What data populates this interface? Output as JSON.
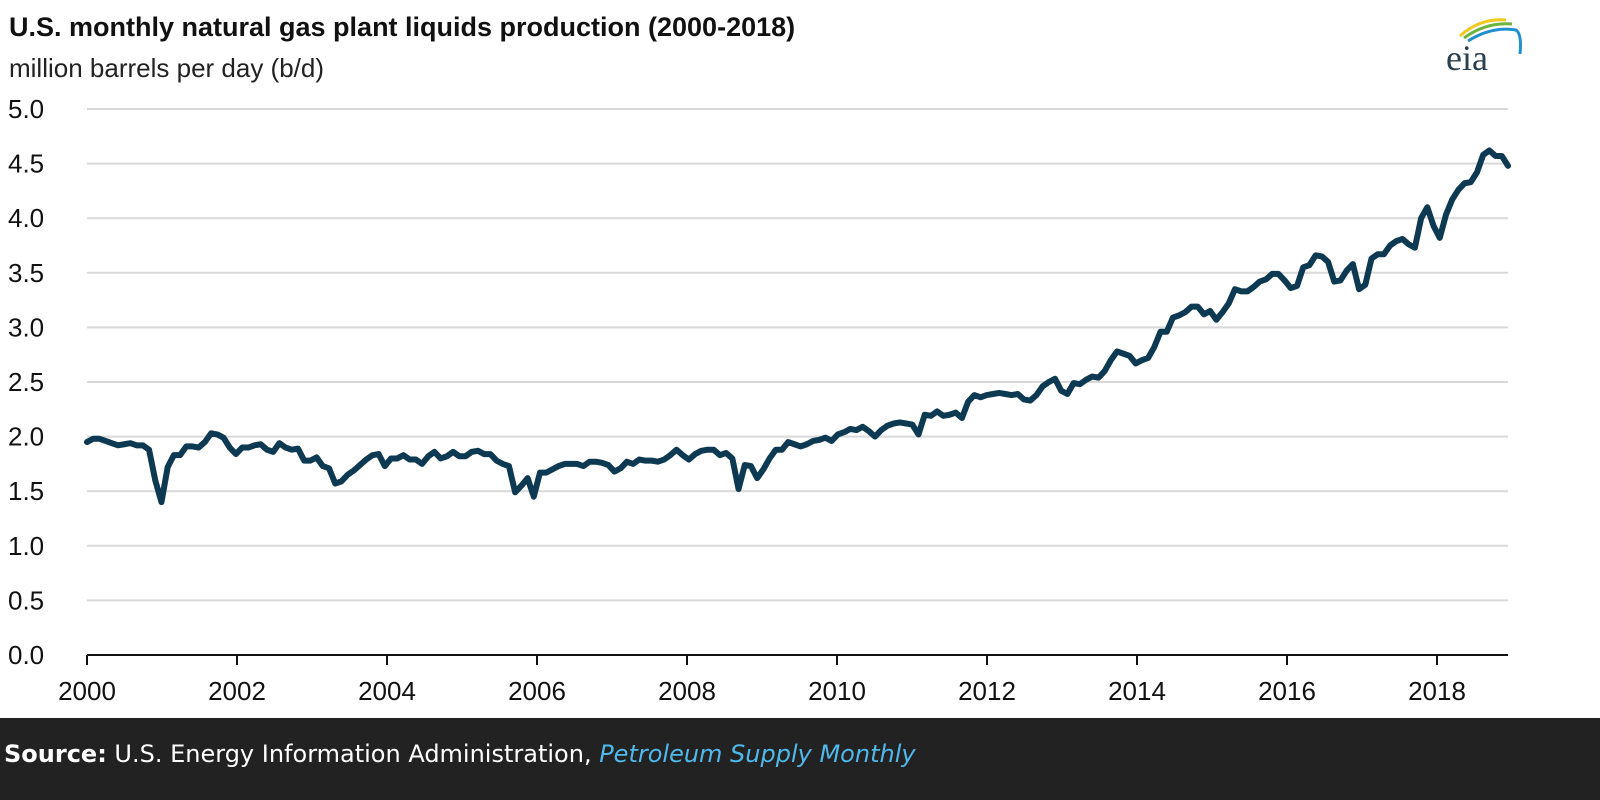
{
  "chart_data": {
    "type": "line",
    "title": "U.S. monthly natural gas plant liquids production (2000-2018)",
    "ylabel": "million barrels per day (b/d)",
    "xlabel": "",
    "ylim": [
      0,
      5.0
    ],
    "xlim": [
      "2000-01",
      "2018-12"
    ],
    "yticks": [
      "0.0",
      "0.5",
      "1.0",
      "1.5",
      "2.0",
      "2.5",
      "3.0",
      "3.5",
      "4.0",
      "4.5",
      "5.0"
    ],
    "xticks": [
      "2000",
      "2002",
      "2004",
      "2006",
      "2008",
      "2010",
      "2012",
      "2014",
      "2016",
      "2018"
    ],
    "grid": "horizontal",
    "line_color": "#0d3a52",
    "x_start": "2000-01",
    "frequency": "monthly",
    "values": [
      1.95,
      1.98,
      1.98,
      1.96,
      1.94,
      1.92,
      1.93,
      1.94,
      1.92,
      1.92,
      1.88,
      1.6,
      1.4,
      1.72,
      1.83,
      1.83,
      1.91,
      1.91,
      1.9,
      1.95,
      2.03,
      2.02,
      1.99,
      1.9,
      1.84,
      1.9,
      1.9,
      1.92,
      1.93,
      1.88,
      1.86,
      1.94,
      1.9,
      1.88,
      1.89,
      1.78,
      1.78,
      1.81,
      1.73,
      1.71,
      1.57,
      1.59,
      1.65,
      1.69,
      1.74,
      1.79,
      1.83,
      1.84,
      1.73,
      1.8,
      1.8,
      1.83,
      1.79,
      1.79,
      1.75,
      1.82,
      1.86,
      1.8,
      1.82,
      1.86,
      1.82,
      1.82,
      1.86,
      1.87,
      1.84,
      1.84,
      1.78,
      1.75,
      1.73,
      1.49,
      1.55,
      1.62,
      1.45,
      1.67,
      1.67,
      1.7,
      1.73,
      1.75,
      1.75,
      1.75,
      1.73,
      1.77,
      1.77,
      1.76,
      1.74,
      1.68,
      1.71,
      1.77,
      1.75,
      1.79,
      1.78,
      1.78,
      1.77,
      1.79,
      1.83,
      1.88,
      1.83,
      1.79,
      1.84,
      1.87,
      1.88,
      1.88,
      1.83,
      1.85,
      1.8,
      1.52,
      1.74,
      1.73,
      1.62,
      1.7,
      1.8,
      1.88,
      1.88,
      1.95,
      1.93,
      1.91,
      1.93,
      1.96,
      1.97,
      1.99,
      1.96,
      2.02,
      2.04,
      2.07,
      2.06,
      2.09,
      2.05,
      2.0,
      2.06,
      2.1,
      2.12,
      2.13,
      2.12,
      2.11,
      2.02,
      2.2,
      2.19,
      2.23,
      2.19,
      2.2,
      2.22,
      2.17,
      2.32,
      2.38,
      2.36,
      2.38,
      2.39,
      2.4,
      2.39,
      2.38,
      2.39,
      2.34,
      2.33,
      2.38,
      2.46,
      2.5,
      2.53,
      2.42,
      2.39,
      2.49,
      2.48,
      2.52,
      2.55,
      2.54,
      2.6,
      2.7,
      2.78,
      2.76,
      2.74,
      2.67,
      2.7,
      2.72,
      2.82,
      2.96,
      2.96,
      3.09,
      3.11,
      3.14,
      3.19,
      3.19,
      3.12,
      3.15,
      3.07,
      3.14,
      3.22,
      3.35,
      3.33,
      3.33,
      3.37,
      3.42,
      3.44,
      3.49,
      3.49,
      3.43,
      3.36,
      3.38,
      3.55,
      3.57,
      3.66,
      3.65,
      3.6,
      3.42,
      3.43,
      3.52,
      3.58,
      3.35,
      3.39,
      3.63,
      3.67,
      3.67,
      3.75,
      3.79,
      3.81,
      3.76,
      3.73,
      4.0,
      4.1,
      3.93,
      3.82,
      4.03,
      4.17,
      4.26,
      4.32,
      4.33,
      4.42,
      4.58,
      4.62,
      4.57,
      4.57,
      4.48
    ]
  },
  "logo": {
    "text": "eia"
  },
  "footer": {
    "source_label": "Source:",
    "source_text": " U.S. Energy Information Administration, ",
    "source_link": "Petroleum Supply Monthly"
  }
}
